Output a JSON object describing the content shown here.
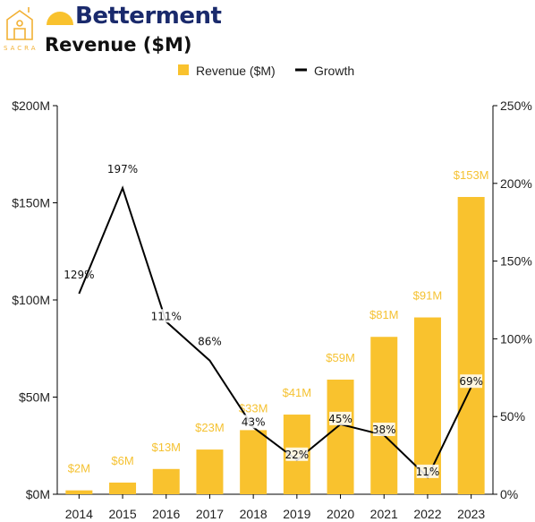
{
  "header": {
    "sacra_text": "SACRA",
    "brand_name": "Betterment",
    "page_title": "Revenue ($M)"
  },
  "colors": {
    "bar": "#f9c22e",
    "line": "#000000",
    "brand_blue": "#1a2a6c",
    "brand_yellow": "#f9c22e"
  },
  "chart_data": {
    "type": "bar",
    "categories": [
      "2014",
      "2015",
      "2016",
      "2017",
      "2018",
      "2019",
      "2020",
      "2021",
      "2022",
      "2023"
    ],
    "series": [
      {
        "name": "Revenue ($M)",
        "type": "bar",
        "axis": "left",
        "values": [
          2,
          6,
          13,
          23,
          33,
          41,
          59,
          81,
          91,
          153
        ],
        "labels": [
          "$2M",
          "$6M",
          "$13M",
          "$23M",
          "$33M",
          "$41M",
          "$59M",
          "$81M",
          "$91M",
          "$153M"
        ]
      },
      {
        "name": "Growth",
        "type": "line",
        "axis": "right",
        "values": [
          129,
          197,
          111,
          86,
          43,
          22,
          45,
          38,
          11,
          69
        ],
        "labels": [
          "129%",
          "197%",
          "111%",
          "86%",
          "43%",
          "22%",
          "45%",
          "38%",
          "11%",
          "69%"
        ]
      }
    ],
    "y_left": {
      "range": [
        0,
        200
      ],
      "ticks": [
        "$0M",
        "$50M",
        "$100M",
        "$150M",
        "$200M"
      ]
    },
    "y_right": {
      "range": [
        0,
        250
      ],
      "ticks": [
        "0%",
        "50%",
        "100%",
        "150%",
        "200%",
        "250%"
      ]
    },
    "legend": {
      "position": "top",
      "items": [
        "Revenue ($M)",
        "Growth"
      ]
    },
    "grid": false
  }
}
